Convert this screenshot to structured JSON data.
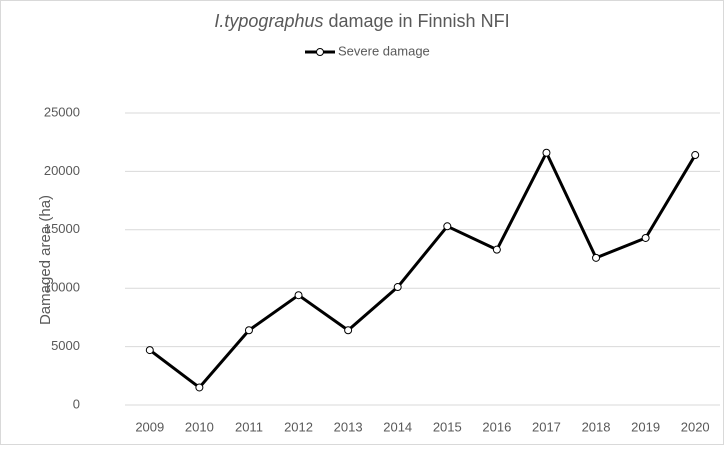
{
  "chart_data": {
    "type": "line",
    "title": [
      "I.typographus",
      " damage in Finnish NFI"
    ],
    "y_label": "Damaged area (ha)",
    "categories": [
      "2009",
      "2010",
      "2011",
      "2012",
      "2013",
      "2014",
      "2015",
      "2016",
      "2017",
      "2018",
      "2019",
      "2020"
    ],
    "series": [
      {
        "name": "Severe damage",
        "color": "#000000",
        "values": [
          4700,
          1500,
          6400,
          9400,
          6400,
          10100,
          15300,
          13300,
          21600,
          12600,
          14300,
          21400
        ]
      }
    ],
    "ylim": [
      0,
      25000
    ],
    "yticks": [
      0,
      5000,
      10000,
      15000,
      20000,
      25000
    ],
    "grid": true,
    "legend": "top"
  }
}
